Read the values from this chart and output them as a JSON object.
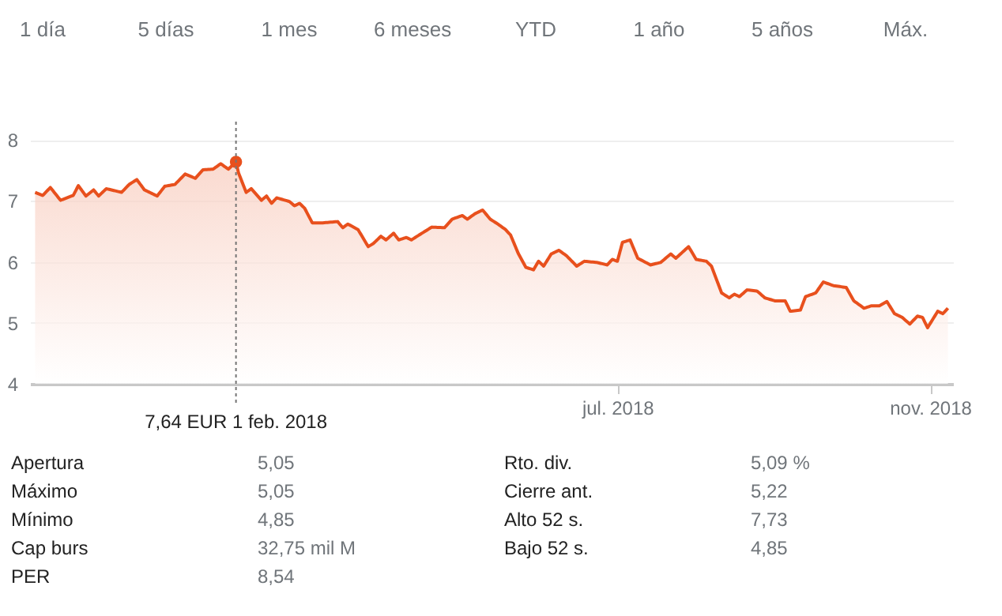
{
  "chart_data": {
    "type": "area",
    "xlim": [
      "2017-11-12",
      "2018-11-10"
    ],
    "ylim": [
      4,
      8.3
    ],
    "yticks": [
      4,
      5,
      6,
      7,
      8
    ],
    "xticks": [
      {
        "value": "2018-07-01",
        "label": "jul. 2018"
      },
      {
        "value": "2018-11-01",
        "label": "nov. 2018"
      }
    ],
    "grid": "y",
    "line_style": "solid",
    "series": [
      {
        "color": "#e8501d",
        "x": [
          "2017-11-14",
          "2017-11-17",
          "2017-11-20",
          "2017-11-24",
          "2017-11-29",
          "2017-12-01",
          "2017-12-04",
          "2017-12-07",
          "2017-12-09",
          "2017-12-12",
          "2017-12-18",
          "2017-12-21",
          "2017-12-24",
          "2017-12-27",
          "2018-01-01",
          "2018-01-04",
          "2018-01-08",
          "2018-01-12",
          "2018-01-16",
          "2018-01-19",
          "2018-01-23",
          "2018-01-26",
          "2018-01-29",
          "2018-02-01",
          "2018-02-02",
          "2018-02-05",
          "2018-02-07",
          "2018-02-11",
          "2018-02-13",
          "2018-02-15",
          "2018-02-17",
          "2018-02-22",
          "2018-02-24",
          "2018-02-26",
          "2018-02-28",
          "2018-03-03",
          "2018-03-07",
          "2018-03-13",
          "2018-03-15",
          "2018-03-17",
          "2018-03-21",
          "2018-03-25",
          "2018-03-27",
          "2018-03-30",
          "2018-04-01",
          "2018-04-04",
          "2018-04-06",
          "2018-04-09",
          "2018-04-11",
          "2018-04-14",
          "2018-04-19",
          "2018-04-24",
          "2018-04-27",
          "2018-05-01",
          "2018-05-03",
          "2018-05-06",
          "2018-05-09",
          "2018-05-12",
          "2018-05-15",
          "2018-05-18",
          "2018-05-20",
          "2018-05-23",
          "2018-05-26",
          "2018-05-29",
          "2018-05-31",
          "2018-06-02",
          "2018-06-05",
          "2018-06-08",
          "2018-06-11",
          "2018-06-15",
          "2018-06-18",
          "2018-06-23",
          "2018-06-27",
          "2018-06-29",
          "2018-07-01",
          "2018-07-03",
          "2018-07-06",
          "2018-07-09",
          "2018-07-14",
          "2018-07-18",
          "2018-07-22",
          "2018-07-24",
          "2018-07-29",
          "2018-08-01",
          "2018-08-05",
          "2018-08-07",
          "2018-08-11",
          "2018-08-14",
          "2018-08-16",
          "2018-08-18",
          "2018-08-21",
          "2018-08-25",
          "2018-08-28",
          "2018-09-01",
          "2018-09-05",
          "2018-09-07",
          "2018-09-11",
          "2018-09-13",
          "2018-09-17",
          "2018-09-20",
          "2018-09-24",
          "2018-09-29",
          "2018-10-02",
          "2018-10-06",
          "2018-10-09",
          "2018-10-12",
          "2018-10-15",
          "2018-10-18",
          "2018-10-21",
          "2018-10-24",
          "2018-10-27",
          "2018-10-29",
          "2018-10-31",
          "2018-11-04",
          "2018-11-06",
          "2018-11-08"
        ],
        "values": [
          7.14,
          7.09,
          7.22,
          7.01,
          7.09,
          7.25,
          7.08,
          7.18,
          7.08,
          7.2,
          7.14,
          7.27,
          7.35,
          7.18,
          7.08,
          7.24,
          7.27,
          7.44,
          7.37,
          7.51,
          7.52,
          7.61,
          7.52,
          7.64,
          7.46,
          7.14,
          7.2,
          7.01,
          7.08,
          6.96,
          7.05,
          6.99,
          6.92,
          6.96,
          6.88,
          6.64,
          6.64,
          6.66,
          6.56,
          6.62,
          6.53,
          6.25,
          6.3,
          6.42,
          6.36,
          6.47,
          6.36,
          6.4,
          6.36,
          6.44,
          6.57,
          6.56,
          6.7,
          6.76,
          6.7,
          6.79,
          6.85,
          6.7,
          6.62,
          6.53,
          6.44,
          6.14,
          5.91,
          5.87,
          6.01,
          5.93,
          6.13,
          6.19,
          6.1,
          5.93,
          6.01,
          5.99,
          5.95,
          6.04,
          6.01,
          6.32,
          6.36,
          6.06,
          5.95,
          5.99,
          6.13,
          6.06,
          6.25,
          6.04,
          6.01,
          5.93,
          5.49,
          5.41,
          5.47,
          5.43,
          5.54,
          5.52,
          5.41,
          5.36,
          5.36,
          5.19,
          5.21,
          5.43,
          5.49,
          5.67,
          5.61,
          5.58,
          5.36,
          5.24,
          5.28,
          5.28,
          5.35,
          5.15,
          5.09,
          4.98,
          5.11,
          5.09,
          4.92,
          5.19,
          5.15,
          5.24
        ]
      },
      {
        "type": "scatter",
        "color": "#e8501d",
        "x": [
          "2018-02-01"
        ],
        "values": [
          7.64
        ]
      }
    ],
    "ref_lines": [
      {
        "axis": "x",
        "value": "2018-02-01",
        "color": "#757575",
        "line_style": "dotted",
        "label": "7,64 EUR  1 feb. 2018"
      }
    ],
    "annotations": [
      "1 día",
      "5 días",
      "1 mes",
      "6 meses",
      "YTD",
      "1 año",
      "5 años",
      "Máx.",
      "Apertura",
      "5,05",
      "Rto. div.",
      "5,09 %",
      "Máximo",
      "5,05",
      "Cierre ant.",
      "5,22",
      "Mínimo",
      "4,85",
      "Alto 52 s.",
      "7,73",
      "Cap burs",
      "32,75 mil M",
      "Bajo 52 s.",
      "4,85",
      "PER",
      "8,54"
    ]
  }
}
